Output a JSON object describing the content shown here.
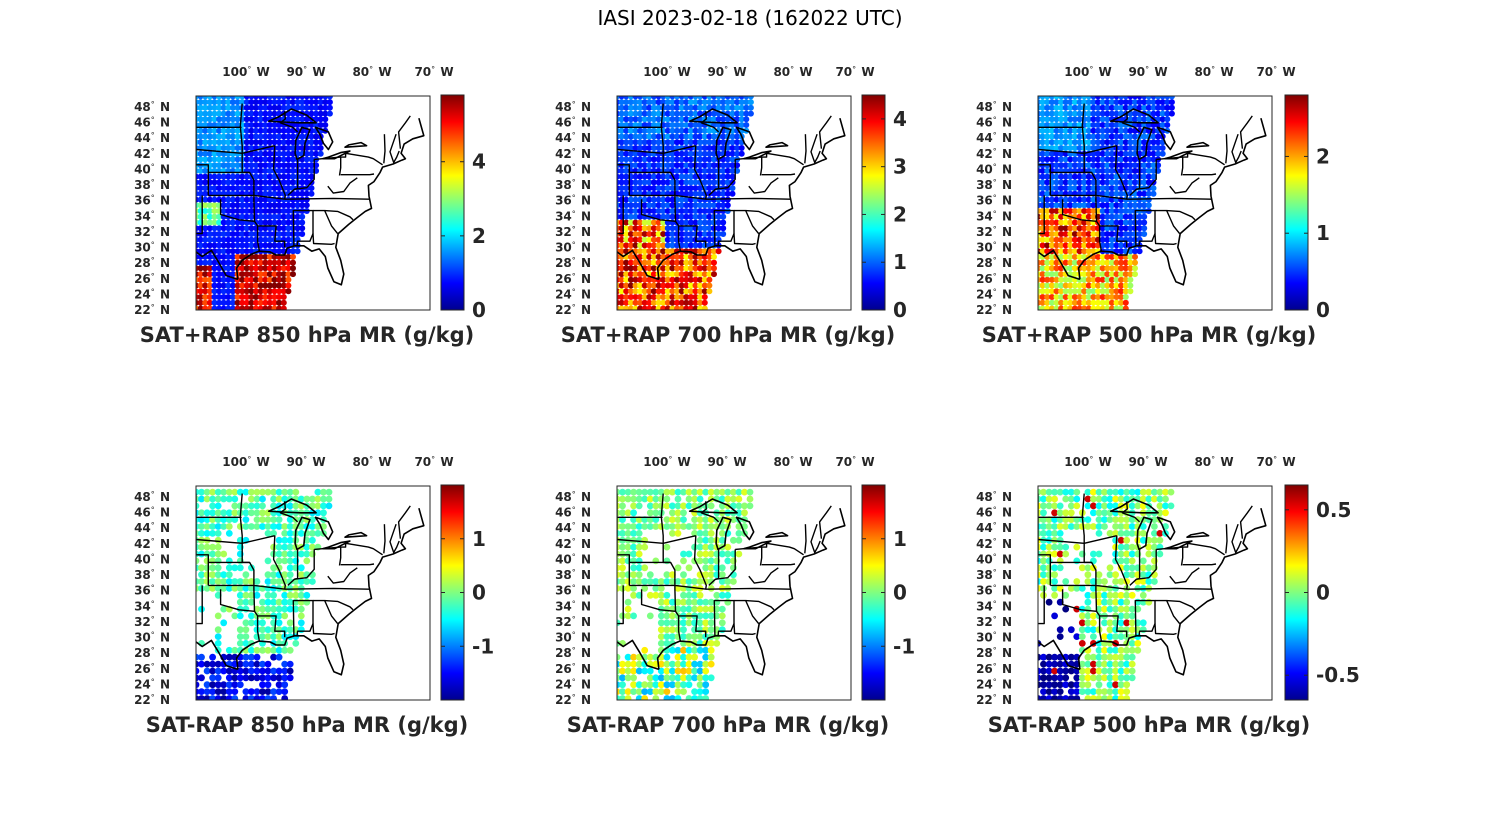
{
  "title": "IASI 2023-02-18 (162022 UTC)",
  "lon_labels": [
    "100",
    "90",
    "80",
    "70"
  ],
  "lon_hemisphere": "W",
  "lat_labels": [
    "48",
    "46",
    "44",
    "42",
    "40",
    "38",
    "36",
    "34",
    "32",
    "30",
    "28",
    "26",
    "24",
    "22"
  ],
  "lat_hemisphere": "N",
  "degree_symbol": "°",
  "colormap": "jet",
  "panels": [
    {
      "title": "SAT+RAP 850 hPa MR (g/kg)",
      "cbar_ticks": [
        "4",
        "2",
        "0"
      ],
      "clim": [
        0,
        5.8
      ],
      "field": "total_850"
    },
    {
      "title": "SAT+RAP 700 hPa MR (g/kg)",
      "cbar_ticks": [
        "4",
        "3",
        "2",
        "1",
        "0"
      ],
      "clim": [
        0,
        4.5
      ],
      "field": "total_700"
    },
    {
      "title": "SAT+RAP 500 hPa MR (g/kg)",
      "cbar_ticks": [
        "2",
        "1",
        "0"
      ],
      "clim": [
        0,
        2.8
      ],
      "field": "total_500"
    },
    {
      "title": "SAT-RAP 850 hPa MR (g/kg)",
      "cbar_ticks": [
        "1",
        "0",
        "-1"
      ],
      "clim": [
        -2,
        2
      ],
      "field": "diff_850"
    },
    {
      "title": "SAT-RAP 700 hPa MR (g/kg)",
      "cbar_ticks": [
        "1",
        "0",
        "-1"
      ],
      "clim": [
        -2,
        2
      ],
      "field": "diff_700"
    },
    {
      "title": "SAT-RAP 500 hPa MR (g/kg)",
      "cbar_ticks": [
        "0.5",
        "0",
        "-0.5"
      ],
      "clim": [
        -0.65,
        0.65
      ],
      "field": "diff_500"
    }
  ]
}
